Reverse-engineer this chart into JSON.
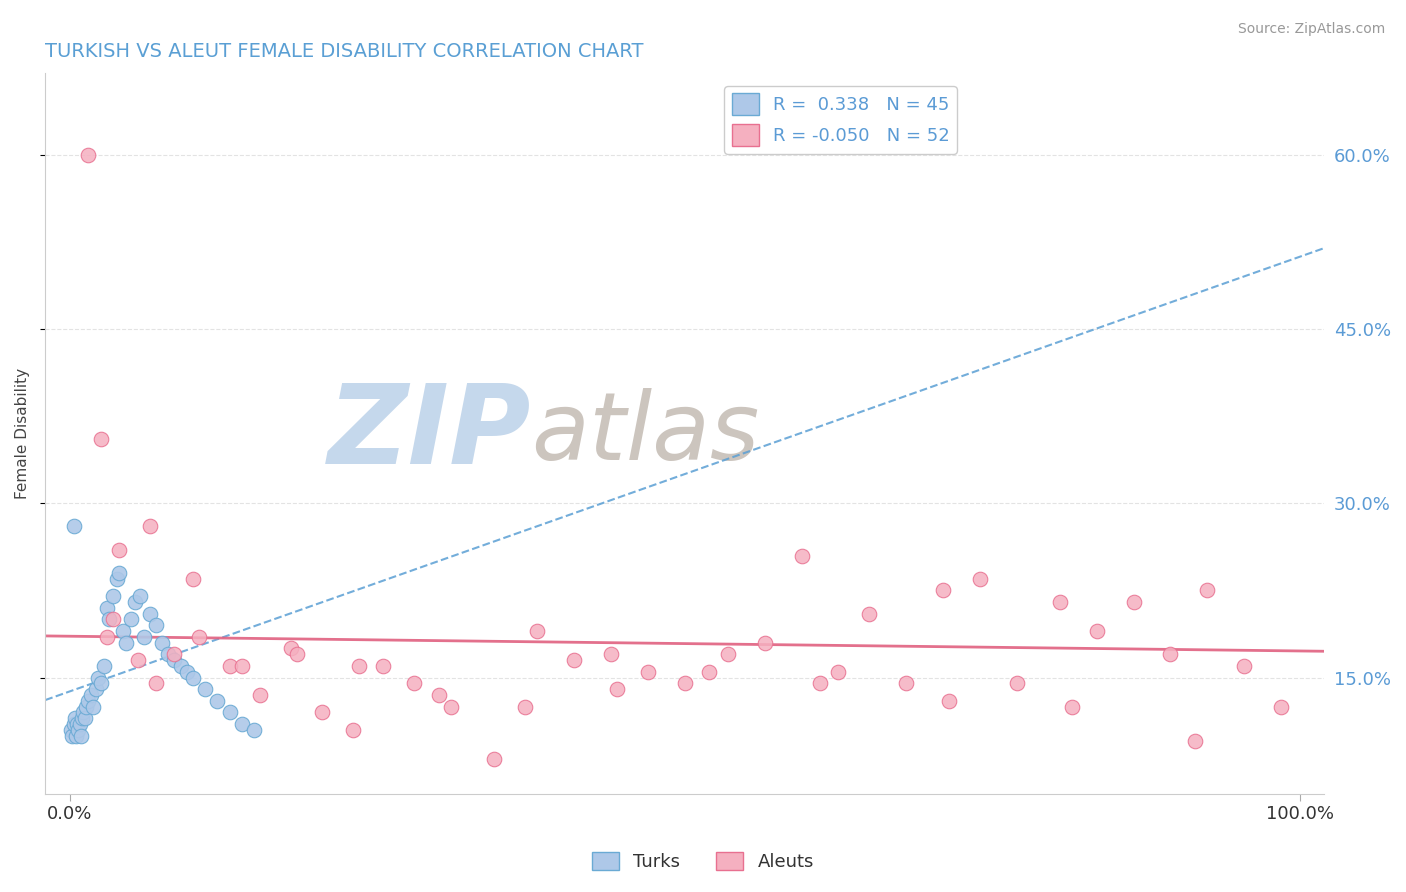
{
  "title": "TURKISH VS ALEUT FEMALE DISABILITY CORRELATION CHART",
  "source": "Source: ZipAtlas.com",
  "ylabel": "Female Disability",
  "r_turks": 0.338,
  "n_turks": 45,
  "r_aleuts": -0.05,
  "n_aleuts": 52,
  "color_turks_fill": "#aec8e8",
  "color_turks_edge": "#6aaad4",
  "color_aleuts_fill": "#f5b0c0",
  "color_aleuts_edge": "#e87090",
  "color_turks_line": "#5a9fd4",
  "color_aleuts_line": "#e06080",
  "color_right_labels": "#5b9bd5",
  "turks_x": [
    0.1,
    0.2,
    0.3,
    0.4,
    0.5,
    0.6,
    0.7,
    0.8,
    0.9,
    1.0,
    1.1,
    1.2,
    1.3,
    1.5,
    1.7,
    1.9,
    2.1,
    2.3,
    2.5,
    2.8,
    3.0,
    3.2,
    3.5,
    3.8,
    4.0,
    4.3,
    4.6,
    5.0,
    5.3,
    5.7,
    6.0,
    6.5,
    7.0,
    7.5,
    8.0,
    8.5,
    9.0,
    9.5,
    10.0,
    11.0,
    12.0,
    13.0,
    14.0,
    15.0,
    0.3
  ],
  "turks_y": [
    10.5,
    10.0,
    11.0,
    11.5,
    10.0,
    11.0,
    10.5,
    11.0,
    10.0,
    11.5,
    12.0,
    11.5,
    12.5,
    13.0,
    13.5,
    12.5,
    14.0,
    15.0,
    14.5,
    16.0,
    21.0,
    20.0,
    22.0,
    23.5,
    24.0,
    19.0,
    18.0,
    20.0,
    21.5,
    22.0,
    18.5,
    20.5,
    19.5,
    18.0,
    17.0,
    16.5,
    16.0,
    15.5,
    15.0,
    14.0,
    13.0,
    12.0,
    11.0,
    10.5,
    28.0
  ],
  "aleuts_x": [
    1.5,
    2.5,
    4.0,
    5.5,
    7.0,
    8.5,
    10.5,
    13.0,
    15.5,
    18.0,
    20.5,
    23.0,
    25.5,
    28.0,
    31.0,
    34.5,
    38.0,
    41.0,
    44.0,
    47.0,
    50.0,
    53.5,
    56.5,
    59.5,
    62.5,
    65.0,
    68.0,
    71.0,
    74.0,
    77.0,
    80.5,
    83.5,
    86.5,
    89.5,
    92.5,
    95.5,
    98.5,
    3.0,
    6.5,
    10.0,
    14.0,
    18.5,
    23.5,
    30.0,
    37.0,
    44.5,
    52.0,
    61.0,
    71.5,
    81.5,
    91.5,
    3.5
  ],
  "aleuts_y": [
    60.0,
    35.5,
    26.0,
    16.5,
    14.5,
    17.0,
    18.5,
    16.0,
    13.5,
    17.5,
    12.0,
    10.5,
    16.0,
    14.5,
    12.5,
    8.0,
    19.0,
    16.5,
    17.0,
    15.5,
    14.5,
    17.0,
    18.0,
    25.5,
    15.5,
    20.5,
    14.5,
    22.5,
    23.5,
    14.5,
    21.5,
    19.0,
    21.5,
    17.0,
    22.5,
    16.0,
    12.5,
    18.5,
    28.0,
    23.5,
    16.0,
    17.0,
    16.0,
    13.5,
    12.5,
    14.0,
    15.5,
    14.5,
    13.0,
    12.5,
    9.5,
    20.0
  ],
  "xlim": [
    -2.0,
    102.0
  ],
  "ylim": [
    5.0,
    67.0
  ],
  "yticks": [
    15.0,
    30.0,
    45.0,
    60.0
  ],
  "xtick_labels": [
    "0.0%",
    "100.0%"
  ],
  "xtick_vals": [
    0.0,
    100.0
  ],
  "background_color": "#ffffff",
  "grid_color": "#dddddd",
  "watermark_zip_color": "#c5d8ec",
  "watermark_atlas_color": "#ccc5be"
}
